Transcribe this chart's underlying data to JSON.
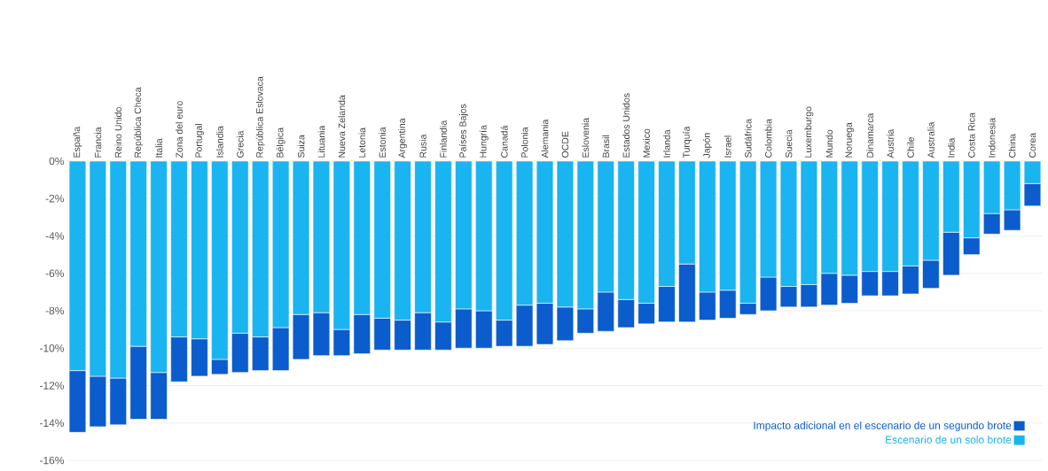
{
  "chart_data": {
    "type": "bar",
    "stacked": true,
    "categories": [
      "España",
      "Francia",
      "Reino Unido",
      "República Checa",
      "Italia",
      "Zona del euro",
      "Portugal",
      "Islandia",
      "Grecia",
      "República Eslovaca",
      "Bélgica",
      "Suiza",
      "Lituania",
      "Nueva Zelanda",
      "Letonia",
      "Estonia",
      "Argentina",
      "Rusia",
      "Finlandia",
      "Países Bajos",
      "Hungría",
      "Canadá",
      "Polonia",
      "Alemania",
      "OCDE",
      "Eslovenia",
      "Brasil",
      "Estados Unidos",
      "Mexico",
      "Irlanda",
      "Turquía",
      "Japón",
      "Israel",
      "Sudáfrica",
      "Colombia",
      "Suecia",
      "Luxemburgo",
      "Mundo",
      "Noruega",
      "Dinamarca",
      "Austria",
      "Chile",
      "Australia",
      "India",
      "Costa Rica",
      "Indonesia",
      "China",
      "Corea"
    ],
    "series": [
      {
        "name": "Escenario de un solo brote",
        "color": "#1ab4f0",
        "values": [
          -11.2,
          -11.5,
          -11.6,
          -9.9,
          -11.3,
          -9.4,
          -9.5,
          -10.6,
          -9.2,
          -9.4,
          -8.9,
          -8.2,
          -8.1,
          -9.0,
          -8.2,
          -8.4,
          -8.5,
          -8.1,
          -8.6,
          -7.9,
          -8.0,
          -8.5,
          -7.7,
          -7.6,
          -7.8,
          -7.9,
          -7.0,
          -7.4,
          -7.6,
          -6.7,
          -5.5,
          -7.0,
          -6.9,
          -7.6,
          -6.2,
          -6.7,
          -6.6,
          -6.0,
          -6.1,
          -5.9,
          -5.9,
          -5.6,
          -5.3,
          -3.8,
          -4.1,
          -2.8,
          -2.6,
          -1.2
        ]
      },
      {
        "name": "Impacto adicional en el escenario de un segundo brote",
        "color": "#0b5ccc",
        "values": [
          -3.3,
          -2.7,
          -2.5,
          -3.9,
          -2.5,
          -2.4,
          -2.0,
          -0.8,
          -2.1,
          -1.8,
          -2.3,
          -2.4,
          -2.3,
          -1.4,
          -2.1,
          -1.7,
          -1.6,
          -2.0,
          -1.5,
          -2.1,
          -2.0,
          -1.4,
          -2.2,
          -2.2,
          -1.8,
          -1.3,
          -2.1,
          -1.5,
          -1.1,
          -1.9,
          -3.1,
          -1.5,
          -1.5,
          -0.6,
          -1.8,
          -1.1,
          -1.2,
          -1.7,
          -1.5,
          -1.3,
          -1.3,
          -1.5,
          -1.5,
          -2.3,
          -0.9,
          -1.1,
          -1.1,
          -1.2
        ]
      }
    ],
    "ylim": [
      -16,
      0
    ],
    "yticks": [
      {
        "value": 0,
        "label": "0%"
      },
      {
        "value": -2,
        "label": "-2%"
      },
      {
        "value": -4,
        "label": "-4%"
      },
      {
        "value": -6,
        "label": "-6%"
      },
      {
        "value": -8,
        "label": "-8%"
      },
      {
        "value": -10,
        "label": "-10%"
      },
      {
        "value": -12,
        "label": "-12%"
      },
      {
        "value": -14,
        "label": "-14%"
      },
      {
        "value": -16,
        "label": "-16%"
      }
    ],
    "grid": "y",
    "legend": "bottom right"
  }
}
